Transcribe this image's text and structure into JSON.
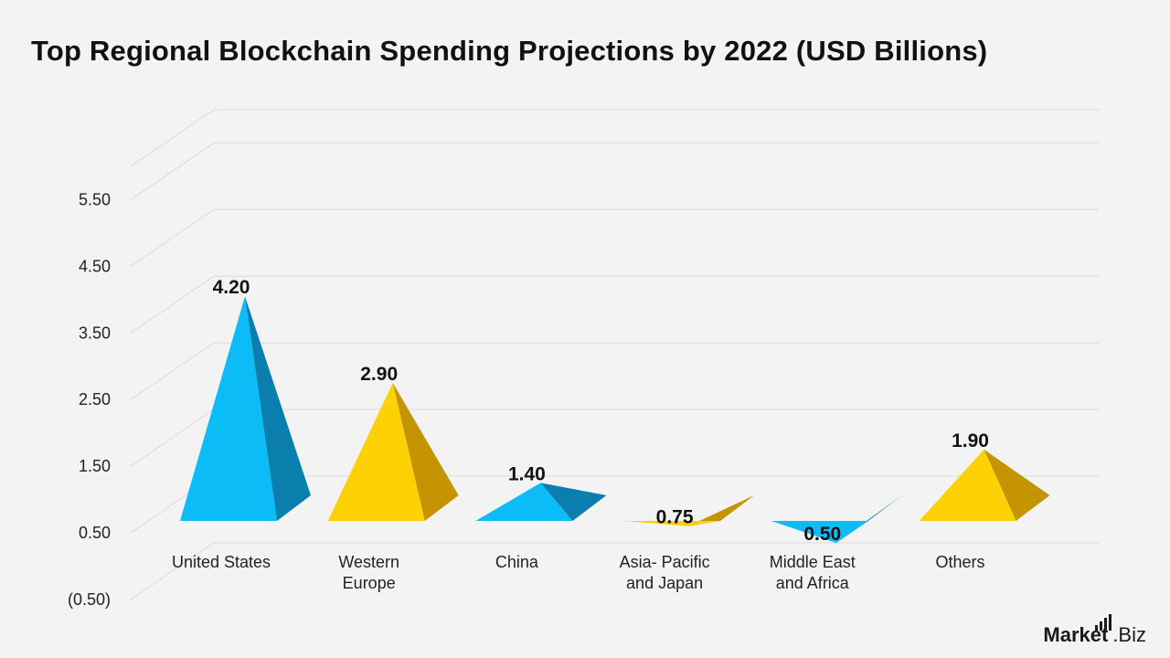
{
  "chart_data": {
    "type": "bar",
    "title": "Top Regional Blockchain Spending Projections by 2022 (USD Billions)",
    "categories": [
      [
        "United States"
      ],
      [
        "Western",
        "Europe"
      ],
      [
        "China"
      ],
      [
        "Asia- Pacific",
        "and Japan"
      ],
      [
        "Middle East",
        "and Africa"
      ],
      [
        "Others"
      ]
    ],
    "values": [
      4.2,
      2.9,
      1.4,
      0.75,
      0.5,
      1.9
    ],
    "value_labels": [
      "4.20",
      "2.90",
      "1.40",
      "0.75",
      "0.50",
      "1.90"
    ],
    "y_ticks": [
      "(0.50)",
      "0.50",
      "1.50",
      "2.50",
      "3.50",
      "4.50",
      "5.50"
    ],
    "y_tick_values": [
      -0.5,
      0.5,
      1.5,
      2.5,
      3.5,
      4.5,
      5.5
    ],
    "ylim": [
      -0.5,
      5.5
    ],
    "grid": true,
    "bar_shape": "pyramid",
    "colors": {
      "blue_front": "#0bbcf7",
      "blue_side": "#0a7eac",
      "yellow_front": "#fed105",
      "yellow_side": "#c49402",
      "grid": "#dedede"
    },
    "color_pattern": [
      "blue",
      "yellow",
      "blue",
      "yellow",
      "blue",
      "yellow"
    ]
  },
  "brand": {
    "part1": "Market",
    "part2": ".Biz"
  }
}
